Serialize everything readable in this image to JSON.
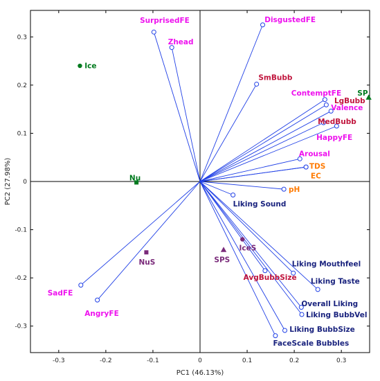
{
  "chart_data": {
    "type": "biplot",
    "xlabel": "PC1 (46.13%)",
    "ylabel": "PC2 (27.98%)",
    "xlim": [
      -0.36,
      0.36
    ],
    "ylim": [
      -0.355,
      0.355
    ],
    "xticks": [
      -0.3,
      -0.2,
      -0.1,
      0,
      0.1,
      0.2,
      0.3
    ],
    "yticks": [
      -0.3,
      -0.2,
      -0.1,
      0,
      0.1,
      0.2,
      0.3
    ],
    "xtick_labels": [
      "-0.3",
      "-0.2",
      "-0.1",
      "0",
      "0.1",
      "0.2",
      "0.3"
    ],
    "ytick_labels": [
      "-0.3",
      "-0.2",
      "-0.1",
      "0",
      "0.1",
      "0.2",
      "0.3"
    ],
    "colors": {
      "facial": "#ee11ee",
      "bubble": "#c0143c",
      "physchem": "#ff7a00",
      "liking": "#1a237e",
      "sample_green": "#007a1e",
      "sample_purple": "#7a2a7a",
      "vector": "#1f3fe6"
    },
    "loadings": [
      {
        "label": "SurprisedFE",
        "x": -0.098,
        "y": 0.31,
        "group": "facial",
        "anchor": "middle",
        "lx": -0.075,
        "ly": 0.335
      },
      {
        "label": "Zhead",
        "x": -0.06,
        "y": 0.278,
        "group": "facial",
        "anchor": "start",
        "lx": -0.068,
        "ly": 0.29
      },
      {
        "label": "DisgustedFE",
        "x": 0.133,
        "y": 0.325,
        "group": "facial",
        "anchor": "start",
        "lx": 0.137,
        "ly": 0.336
      },
      {
        "label": "SmBubb",
        "x": 0.12,
        "y": 0.202,
        "group": "bubble",
        "anchor": "start",
        "lx": 0.124,
        "ly": 0.216
      },
      {
        "label": "ContemptFE",
        "x": 0.265,
        "y": 0.17,
        "group": "facial",
        "anchor": "end",
        "lx": 0.3,
        "ly": 0.184
      },
      {
        "label": "LgBubb",
        "x": 0.268,
        "y": 0.159,
        "group": "bubble",
        "anchor": "start",
        "lx": 0.285,
        "ly": 0.168
      },
      {
        "label": "Valence",
        "x": 0.278,
        "y": 0.146,
        "group": "facial",
        "anchor": "start",
        "lx": 0.278,
        "ly": 0.154
      },
      {
        "label": "MedBubb",
        "x": 0.262,
        "y": 0.122,
        "group": "bubble",
        "anchor": "start",
        "lx": 0.25,
        "ly": 0.125
      },
      {
        "label": "HappyFE",
        "x": 0.29,
        "y": 0.115,
        "group": "facial",
        "anchor": "start",
        "lx": 0.247,
        "ly": 0.092
      },
      {
        "label": "Arousal",
        "x": 0.212,
        "y": 0.047,
        "group": "facial",
        "anchor": "start",
        "lx": 0.21,
        "ly": 0.058
      },
      {
        "label": "TDS",
        "x": 0.225,
        "y": 0.03,
        "group": "physchem",
        "anchor": "start",
        "lx": 0.232,
        "ly": 0.032
      },
      {
        "label": "EC",
        "x": 0.225,
        "y": 0.03,
        "group": "physchem",
        "anchor": "start",
        "lx": 0.235,
        "ly": 0.012
      },
      {
        "label": "pH",
        "x": 0.178,
        "y": -0.016,
        "group": "physchem",
        "anchor": "start",
        "lx": 0.188,
        "ly": -0.016
      },
      {
        "label": "Liking Sound",
        "x": 0.07,
        "y": -0.028,
        "group": "liking",
        "anchor": "start",
        "lx": 0.07,
        "ly": -0.046
      },
      {
        "label": "AvgBubbSize",
        "x": 0.138,
        "y": -0.185,
        "group": "bubble",
        "anchor": "start",
        "lx": 0.092,
        "ly": -0.198
      },
      {
        "label": "Liking Mouthfeel",
        "x": 0.198,
        "y": -0.19,
        "group": "liking",
        "anchor": "start",
        "lx": 0.195,
        "ly": -0.17
      },
      {
        "label": "Liking Taste",
        "x": 0.25,
        "y": -0.224,
        "group": "liking",
        "anchor": "start",
        "lx": 0.235,
        "ly": -0.206
      },
      {
        "label": "Overall Liking",
        "x": 0.215,
        "y": -0.261,
        "group": "liking",
        "anchor": "start",
        "lx": 0.215,
        "ly": -0.253
      },
      {
        "label": "Liking BubbVel",
        "x": 0.216,
        "y": -0.276,
        "group": "liking",
        "anchor": "start",
        "lx": 0.225,
        "ly": -0.276
      },
      {
        "label": "Liking BubbSize",
        "x": 0.18,
        "y": -0.309,
        "group": "liking",
        "anchor": "start",
        "lx": 0.19,
        "ly": -0.306
      },
      {
        "label": "FaceScale Bubbles",
        "x": 0.16,
        "y": -0.32,
        "group": "liking",
        "anchor": "start",
        "lx": 0.155,
        "ly": -0.335
      },
      {
        "label": "SadFE",
        "x": -0.253,
        "y": -0.215,
        "group": "facial",
        "anchor": "end",
        "lx": -0.27,
        "ly": -0.231
      },
      {
        "label": "AngryFE",
        "x": -0.218,
        "y": -0.246,
        "group": "facial",
        "anchor": "start",
        "lx": -0.245,
        "ly": -0.273
      }
    ],
    "samples": [
      {
        "label": "Ice",
        "x": -0.255,
        "y": 0.24,
        "marker": "circle",
        "color": "sample_green",
        "lx": -0.245,
        "ly": 0.241
      },
      {
        "label": "SP",
        "x": 0.358,
        "y": 0.174,
        "marker": "triangle",
        "color": "sample_green",
        "lx": 0.334,
        "ly": 0.184
      },
      {
        "label": "Nu",
        "x": -0.135,
        "y": -0.002,
        "marker": "square",
        "color": "sample_green",
        "lx": -0.15,
        "ly": 0.008
      },
      {
        "label": "NuS",
        "x": -0.114,
        "y": -0.147,
        "marker": "square",
        "color": "sample_purple",
        "lx": -0.13,
        "ly": -0.167
      },
      {
        "label": "SPS",
        "x": 0.05,
        "y": -0.142,
        "marker": "triangle",
        "color": "sample_purple",
        "lx": 0.03,
        "ly": -0.162
      },
      {
        "label": "IceS",
        "x": 0.09,
        "y": -0.12,
        "marker": "circle",
        "color": "sample_purple",
        "lx": 0.083,
        "ly": -0.137
      }
    ]
  }
}
